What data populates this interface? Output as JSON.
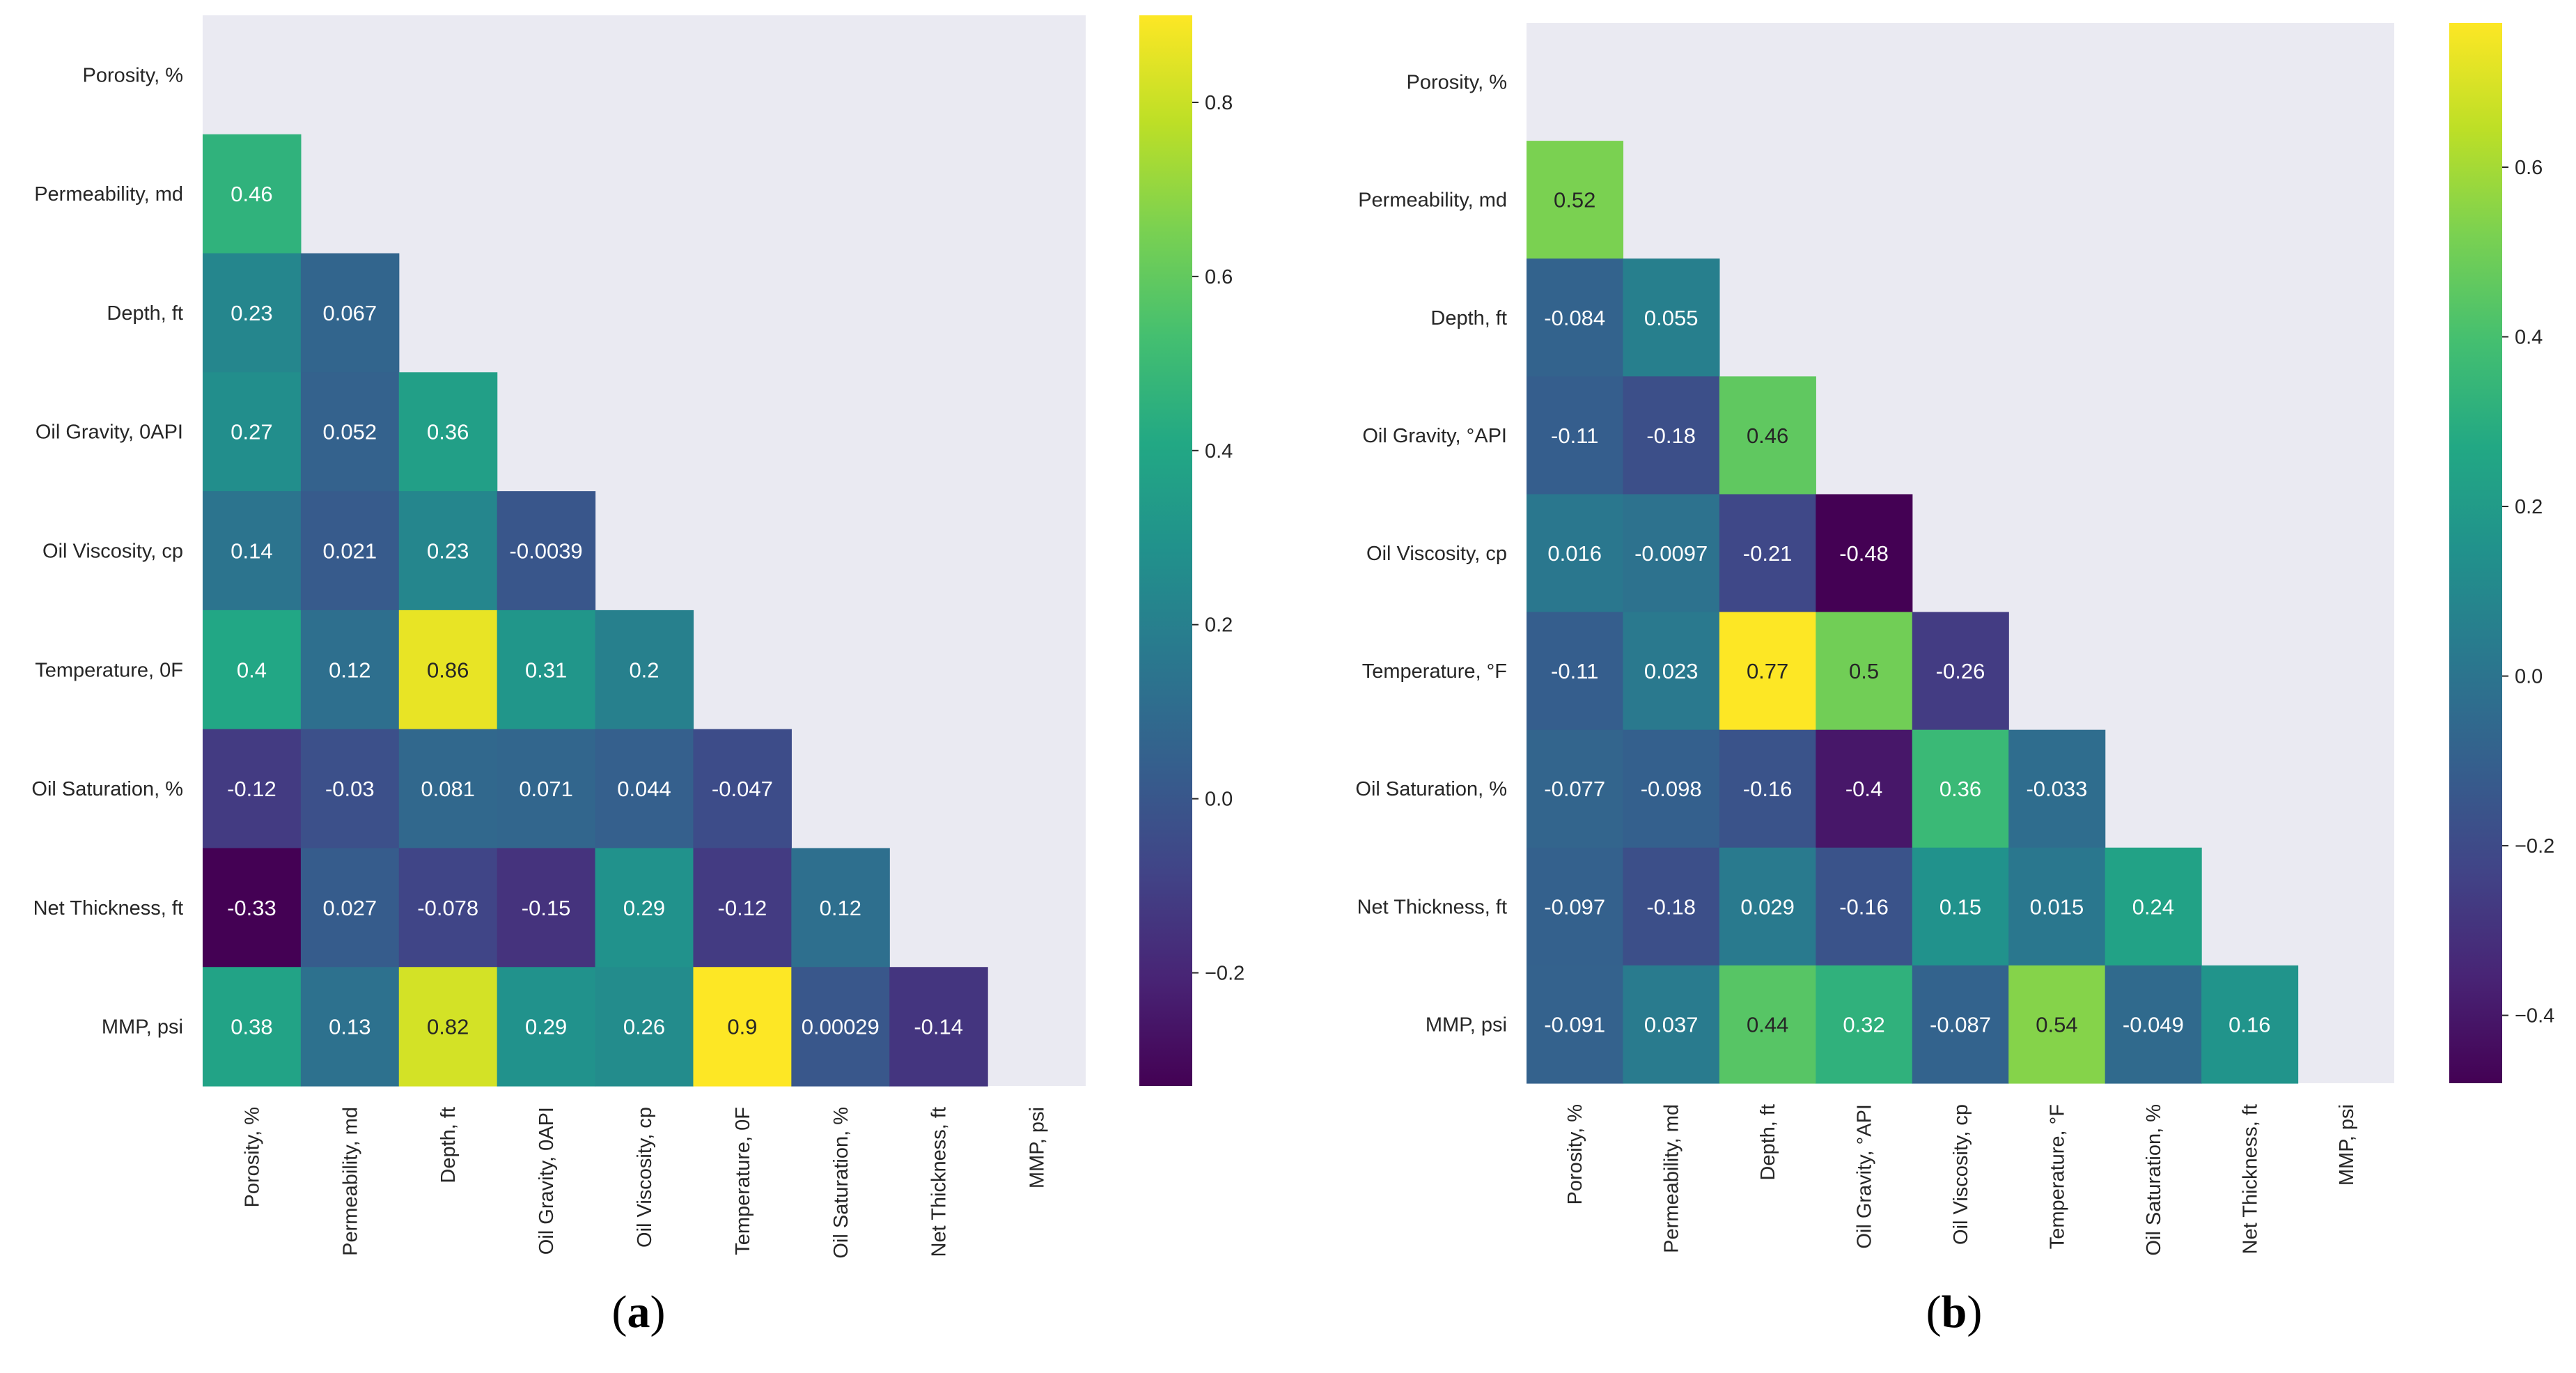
{
  "chart_data": [
    {
      "type": "heatmap",
      "panel_label": "a",
      "variables": [
        "Porosity, %",
        "Permeability, md",
        "Depth, ft",
        "Oil Gravity, 0API",
        "Oil Viscosity, cp",
        "Temperature, 0F",
        "Oil Saturation, %",
        "Net Thickness, ft",
        "MMP, psi"
      ],
      "matrix_lower": [
        [],
        [
          "0.46"
        ],
        [
          "0.23",
          "0.067"
        ],
        [
          "0.27",
          "0.052",
          "0.36"
        ],
        [
          "0.14",
          "0.021",
          "0.23",
          "-0.0039"
        ],
        [
          "0.4",
          "0.12",
          "0.86",
          "0.31",
          "0.2"
        ],
        [
          "-0.12",
          "-0.03",
          "0.081",
          "0.071",
          "0.044",
          "-0.047"
        ],
        [
          "-0.33",
          "0.027",
          "-0.078",
          "-0.15",
          "0.29",
          "-0.12",
          "0.12"
        ],
        [
          "0.38",
          "0.13",
          "0.82",
          "0.29",
          "0.26",
          "0.9",
          "0.00029",
          "-0.14"
        ]
      ],
      "colorbar": {
        "colormap": "viridis",
        "vmin": -0.33,
        "vmax": 0.9,
        "ticks": [
          "0.8",
          "0.6",
          "0.4",
          "0.2",
          "0.0",
          "−0.2"
        ]
      }
    },
    {
      "type": "heatmap",
      "panel_label": "b",
      "variables": [
        "Porosity, %",
        "Permeability, md",
        "Depth, ft",
        "Oil Gravity, °API",
        "Oil Viscosity, cp",
        "Temperature, °F",
        "Oil Saturation, %",
        "Net Thickness, ft",
        "MMP, psi"
      ],
      "matrix_lower": [
        [],
        [
          "0.52"
        ],
        [
          "-0.084",
          "0.055"
        ],
        [
          "-0.11",
          "-0.18",
          "0.46"
        ],
        [
          "0.016",
          "-0.0097",
          "-0.21",
          "-0.48"
        ],
        [
          "-0.11",
          "0.023",
          "0.77",
          "0.5",
          "-0.26"
        ],
        [
          "-0.077",
          "-0.098",
          "-0.16",
          "-0.4",
          "0.36",
          "-0.033"
        ],
        [
          "-0.097",
          "-0.18",
          "0.029",
          "-0.16",
          "0.15",
          "0.015",
          "0.24"
        ],
        [
          "-0.091",
          "0.037",
          "0.44",
          "0.32",
          "-0.087",
          "0.54",
          "-0.049",
          "0.16"
        ]
      ],
      "colorbar": {
        "colormap": "viridis",
        "vmin": -0.48,
        "vmax": 0.77,
        "ticks": [
          "0.6",
          "0.4",
          "0.2",
          "0.0",
          "−0.2",
          "−0.4"
        ]
      }
    }
  ]
}
